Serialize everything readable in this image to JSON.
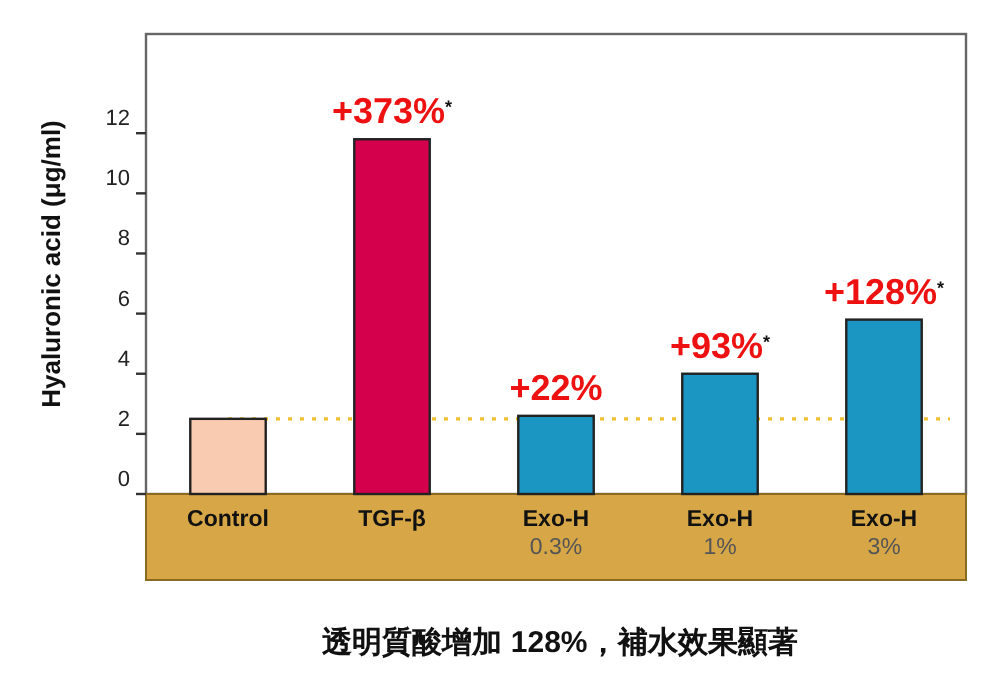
{
  "chart_data": {
    "type": "bar",
    "ylabel": "Hyaluronic acid  (μg/ml)",
    "categories": [
      "Control",
      "TGF-β",
      "Exo-H\n0.3%",
      "Exo-H\n1%",
      "Exo-H\n3%"
    ],
    "values": [
      2.5,
      11.8,
      2.6,
      4.0,
      5.8
    ],
    "colors": [
      "#f9cbb0",
      "#d4004c",
      "#1b95c2",
      "#1b95c2",
      "#1b95c2"
    ],
    "ylim": [
      0,
      15.3
    ],
    "yticks": [
      0,
      2,
      4,
      6,
      8,
      10,
      12
    ],
    "grid": false,
    "ref_lines": [
      {
        "axis": "y",
        "value": 2.5,
        "color": "#f0c030",
        "line_style": "dotted"
      }
    ],
    "annotations": [
      {
        "text": "+373%$^{*}$",
        "x": "TGF-β",
        "y": 11.8
      },
      {
        "text": "+22%",
        "x": "Exo-H\n0.3%",
        "y": 2.6
      },
      {
        "text": "+93%$^{*}$",
        "x": "Exo-H\n1%",
        "y": 4.0
      },
      {
        "text": "+128%$^{*}$",
        "x": "Exo-H\n3%",
        "y": 5.8
      },
      "透明質酸增加 128%，補水效果顯著"
    ]
  }
}
